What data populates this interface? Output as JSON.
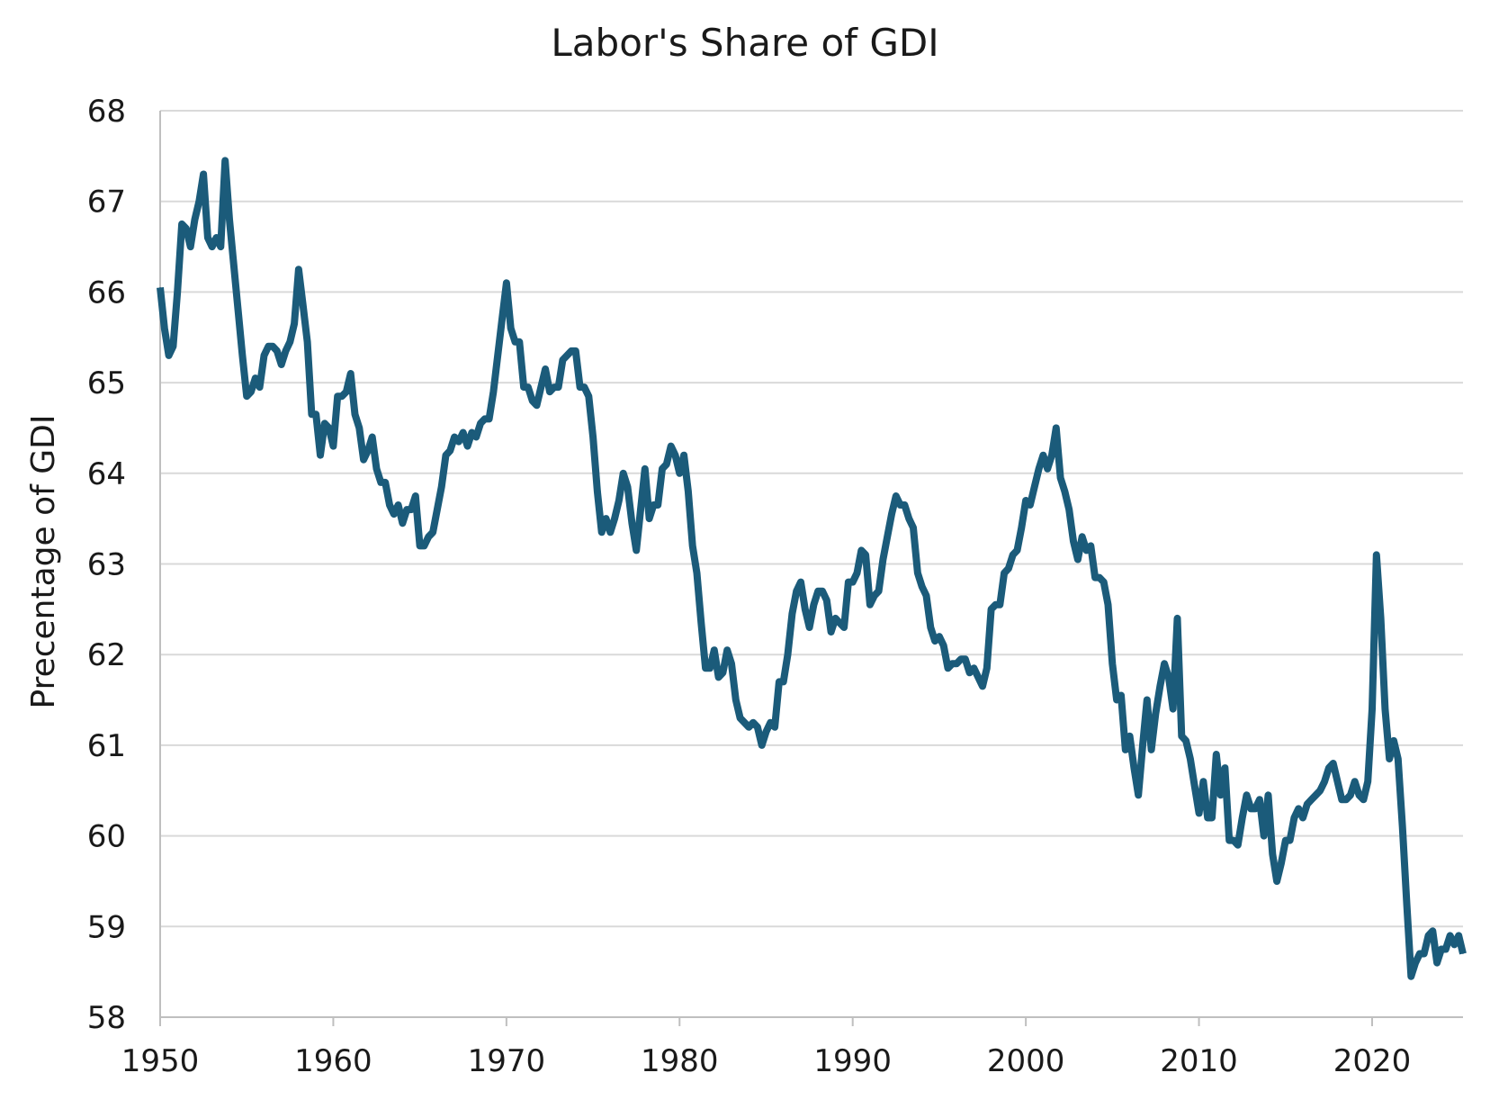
{
  "chart_data": {
    "type": "line",
    "title": "Labor's Share of GDI",
    "xlabel": "",
    "ylabel": "Precentage of GDI",
    "xlim": [
      1950,
      2025.25
    ],
    "ylim": [
      58,
      68
    ],
    "x_ticks": [
      "1950",
      "1960",
      "1970",
      "1980",
      "1990",
      "2000",
      "2010",
      "2020"
    ],
    "y_ticks": [
      "58",
      "59",
      "60",
      "61",
      "62",
      "63",
      "64",
      "65",
      "66",
      "67",
      "68"
    ],
    "grid": true,
    "colors": {
      "line": "#1b5b7a",
      "grid": "#d9d9d9",
      "axis": "#bfbfbf",
      "text": "#1a1a1a"
    },
    "series": [
      {
        "name": "Labor's Share of GDI",
        "points": [
          [
            1950.0,
            66.05
          ],
          [
            1950.25,
            65.6
          ],
          [
            1950.5,
            65.3
          ],
          [
            1950.75,
            65.4
          ],
          [
            1951.0,
            66.0
          ],
          [
            1951.25,
            66.75
          ],
          [
            1951.5,
            66.7
          ],
          [
            1951.75,
            66.5
          ],
          [
            1952.0,
            66.8
          ],
          [
            1952.25,
            67.0
          ],
          [
            1952.5,
            67.3
          ],
          [
            1952.75,
            66.6
          ],
          [
            1953.0,
            66.5
          ],
          [
            1953.25,
            66.6
          ],
          [
            1953.5,
            66.5
          ],
          [
            1953.75,
            67.45
          ],
          [
            1954.0,
            66.8
          ],
          [
            1954.25,
            66.3
          ],
          [
            1954.5,
            65.8
          ],
          [
            1954.75,
            65.3
          ],
          [
            1955.0,
            64.85
          ],
          [
            1955.25,
            64.9
          ],
          [
            1955.5,
            65.05
          ],
          [
            1955.75,
            64.95
          ],
          [
            1956.0,
            65.3
          ],
          [
            1956.25,
            65.4
          ],
          [
            1956.5,
            65.4
          ],
          [
            1956.75,
            65.35
          ],
          [
            1957.0,
            65.2
          ],
          [
            1957.25,
            65.35
          ],
          [
            1957.5,
            65.45
          ],
          [
            1957.75,
            65.65
          ],
          [
            1958.0,
            66.25
          ],
          [
            1958.25,
            65.85
          ],
          [
            1958.5,
            65.45
          ],
          [
            1958.75,
            64.65
          ],
          [
            1959.0,
            64.65
          ],
          [
            1959.25,
            64.2
          ],
          [
            1959.5,
            64.55
          ],
          [
            1959.75,
            64.5
          ],
          [
            1960.0,
            64.3
          ],
          [
            1960.25,
            64.85
          ],
          [
            1960.5,
            64.85
          ],
          [
            1960.75,
            64.9
          ],
          [
            1961.0,
            65.1
          ],
          [
            1961.25,
            64.65
          ],
          [
            1961.5,
            64.5
          ],
          [
            1961.75,
            64.15
          ],
          [
            1962.0,
            64.25
          ],
          [
            1962.25,
            64.4
          ],
          [
            1962.5,
            64.05
          ],
          [
            1962.75,
            63.9
          ],
          [
            1963.0,
            63.9
          ],
          [
            1963.25,
            63.65
          ],
          [
            1963.5,
            63.55
          ],
          [
            1963.75,
            63.65
          ],
          [
            1964.0,
            63.45
          ],
          [
            1964.25,
            63.6
          ],
          [
            1964.5,
            63.6
          ],
          [
            1964.75,
            63.75
          ],
          [
            1965.0,
            63.2
          ],
          [
            1965.25,
            63.2
          ],
          [
            1965.5,
            63.3
          ],
          [
            1965.75,
            63.35
          ],
          [
            1966.0,
            63.6
          ],
          [
            1966.25,
            63.85
          ],
          [
            1966.5,
            64.2
          ],
          [
            1966.75,
            64.25
          ],
          [
            1967.0,
            64.4
          ],
          [
            1967.25,
            64.35
          ],
          [
            1967.5,
            64.45
          ],
          [
            1967.75,
            64.3
          ],
          [
            1968.0,
            64.45
          ],
          [
            1968.25,
            64.4
          ],
          [
            1968.5,
            64.55
          ],
          [
            1968.75,
            64.6
          ],
          [
            1969.0,
            64.6
          ],
          [
            1969.25,
            64.9
          ],
          [
            1969.5,
            65.3
          ],
          [
            1969.75,
            65.7
          ],
          [
            1970.0,
            66.1
          ],
          [
            1970.25,
            65.6
          ],
          [
            1970.5,
            65.45
          ],
          [
            1970.75,
            65.45
          ],
          [
            1971.0,
            64.95
          ],
          [
            1971.25,
            64.95
          ],
          [
            1971.5,
            64.8
          ],
          [
            1971.75,
            64.75
          ],
          [
            1972.0,
            64.95
          ],
          [
            1972.25,
            65.15
          ],
          [
            1972.5,
            64.9
          ],
          [
            1972.75,
            64.95
          ],
          [
            1973.0,
            64.95
          ],
          [
            1973.25,
            65.25
          ],
          [
            1973.5,
            65.3
          ],
          [
            1973.75,
            65.35
          ],
          [
            1974.0,
            65.35
          ],
          [
            1974.25,
            64.95
          ],
          [
            1974.5,
            64.95
          ],
          [
            1974.75,
            64.85
          ],
          [
            1975.0,
            64.4
          ],
          [
            1975.25,
            63.8
          ],
          [
            1975.5,
            63.35
          ],
          [
            1975.75,
            63.5
          ],
          [
            1976.0,
            63.35
          ],
          [
            1976.25,
            63.5
          ],
          [
            1976.5,
            63.7
          ],
          [
            1976.75,
            64.0
          ],
          [
            1977.0,
            63.85
          ],
          [
            1977.25,
            63.45
          ],
          [
            1977.5,
            63.15
          ],
          [
            1977.75,
            63.6
          ],
          [
            1978.0,
            64.05
          ],
          [
            1978.25,
            63.5
          ],
          [
            1978.5,
            63.65
          ],
          [
            1978.75,
            63.65
          ],
          [
            1979.0,
            64.05
          ],
          [
            1979.25,
            64.1
          ],
          [
            1979.5,
            64.3
          ],
          [
            1979.75,
            64.2
          ],
          [
            1980.0,
            64.0
          ],
          [
            1980.25,
            64.2
          ],
          [
            1980.5,
            63.8
          ],
          [
            1980.75,
            63.2
          ],
          [
            1981.0,
            62.9
          ],
          [
            1981.25,
            62.35
          ],
          [
            1981.5,
            61.85
          ],
          [
            1981.75,
            61.85
          ],
          [
            1982.0,
            62.05
          ],
          [
            1982.25,
            61.75
          ],
          [
            1982.5,
            61.8
          ],
          [
            1982.75,
            62.05
          ],
          [
            1983.0,
            61.9
          ],
          [
            1983.25,
            61.5
          ],
          [
            1983.5,
            61.3
          ],
          [
            1983.75,
            61.25
          ],
          [
            1984.0,
            61.2
          ],
          [
            1984.25,
            61.25
          ],
          [
            1984.5,
            61.2
          ],
          [
            1984.75,
            61.0
          ],
          [
            1985.0,
            61.15
          ],
          [
            1985.25,
            61.25
          ],
          [
            1985.5,
            61.2
          ],
          [
            1985.75,
            61.7
          ],
          [
            1986.0,
            61.7
          ],
          [
            1986.25,
            62.0
          ],
          [
            1986.5,
            62.45
          ],
          [
            1986.75,
            62.7
          ],
          [
            1987.0,
            62.8
          ],
          [
            1987.25,
            62.5
          ],
          [
            1987.5,
            62.3
          ],
          [
            1987.75,
            62.55
          ],
          [
            1988.0,
            62.7
          ],
          [
            1988.25,
            62.7
          ],
          [
            1988.5,
            62.6
          ],
          [
            1988.75,
            62.25
          ],
          [
            1989.0,
            62.4
          ],
          [
            1989.25,
            62.35
          ],
          [
            1989.5,
            62.3
          ],
          [
            1989.75,
            62.8
          ],
          [
            1990.0,
            62.8
          ],
          [
            1990.25,
            62.9
          ],
          [
            1990.5,
            63.15
          ],
          [
            1990.75,
            63.1
          ],
          [
            1991.0,
            62.55
          ],
          [
            1991.25,
            62.65
          ],
          [
            1991.5,
            62.7
          ],
          [
            1991.75,
            63.05
          ],
          [
            1992.0,
            63.3
          ],
          [
            1992.25,
            63.55
          ],
          [
            1992.5,
            63.75
          ],
          [
            1992.75,
            63.65
          ],
          [
            1993.0,
            63.65
          ],
          [
            1993.25,
            63.5
          ],
          [
            1993.5,
            63.4
          ],
          [
            1993.75,
            62.9
          ],
          [
            1994.0,
            62.75
          ],
          [
            1994.25,
            62.65
          ],
          [
            1994.5,
            62.3
          ],
          [
            1994.75,
            62.15
          ],
          [
            1995.0,
            62.2
          ],
          [
            1995.25,
            62.1
          ],
          [
            1995.5,
            61.85
          ],
          [
            1995.75,
            61.9
          ],
          [
            1996.0,
            61.9
          ],
          [
            1996.25,
            61.95
          ],
          [
            1996.5,
            61.95
          ],
          [
            1996.75,
            61.8
          ],
          [
            1997.0,
            61.85
          ],
          [
            1997.25,
            61.75
          ],
          [
            1997.5,
            61.65
          ],
          [
            1997.75,
            61.85
          ],
          [
            1998.0,
            62.5
          ],
          [
            1998.25,
            62.55
          ],
          [
            1998.5,
            62.55
          ],
          [
            1998.75,
            62.9
          ],
          [
            1999.0,
            62.95
          ],
          [
            1999.25,
            63.1
          ],
          [
            1999.5,
            63.15
          ],
          [
            1999.75,
            63.4
          ],
          [
            2000.0,
            63.7
          ],
          [
            2000.25,
            63.65
          ],
          [
            2000.5,
            63.85
          ],
          [
            2000.75,
            64.05
          ],
          [
            2001.0,
            64.2
          ],
          [
            2001.25,
            64.05
          ],
          [
            2001.5,
            64.2
          ],
          [
            2001.75,
            64.5
          ],
          [
            2002.0,
            63.95
          ],
          [
            2002.25,
            63.8
          ],
          [
            2002.5,
            63.6
          ],
          [
            2002.75,
            63.25
          ],
          [
            2003.0,
            63.05
          ],
          [
            2003.25,
            63.3
          ],
          [
            2003.5,
            63.15
          ],
          [
            2003.75,
            63.2
          ],
          [
            2004.0,
            62.85
          ],
          [
            2004.25,
            62.85
          ],
          [
            2004.5,
            62.8
          ],
          [
            2004.75,
            62.55
          ],
          [
            2005.0,
            61.9
          ],
          [
            2005.25,
            61.5
          ],
          [
            2005.5,
            61.55
          ],
          [
            2005.75,
            60.95
          ],
          [
            2006.0,
            61.1
          ],
          [
            2006.25,
            60.75
          ],
          [
            2006.5,
            60.45
          ],
          [
            2006.75,
            61.0
          ],
          [
            2007.0,
            61.5
          ],
          [
            2007.25,
            60.95
          ],
          [
            2007.5,
            61.35
          ],
          [
            2007.75,
            61.65
          ],
          [
            2008.0,
            61.9
          ],
          [
            2008.25,
            61.75
          ],
          [
            2008.5,
            61.4
          ],
          [
            2008.75,
            62.4
          ],
          [
            2009.0,
            61.1
          ],
          [
            2009.25,
            61.05
          ],
          [
            2009.5,
            60.85
          ],
          [
            2009.75,
            60.55
          ],
          [
            2010.0,
            60.25
          ],
          [
            2010.25,
            60.6
          ],
          [
            2010.5,
            60.2
          ],
          [
            2010.75,
            60.2
          ],
          [
            2011.0,
            60.9
          ],
          [
            2011.25,
            60.45
          ],
          [
            2011.5,
            60.75
          ],
          [
            2011.75,
            59.95
          ],
          [
            2012.0,
            59.95
          ],
          [
            2012.25,
            59.9
          ],
          [
            2012.5,
            60.2
          ],
          [
            2012.75,
            60.45
          ],
          [
            2013.0,
            60.3
          ],
          [
            2013.25,
            60.3
          ],
          [
            2013.5,
            60.4
          ],
          [
            2013.75,
            60.0
          ],
          [
            2014.0,
            60.45
          ],
          [
            2014.25,
            59.8
          ],
          [
            2014.5,
            59.5
          ],
          [
            2014.75,
            59.7
          ],
          [
            2015.0,
            59.95
          ],
          [
            2015.25,
            59.95
          ],
          [
            2015.5,
            60.2
          ],
          [
            2015.75,
            60.3
          ],
          [
            2016.0,
            60.2
          ],
          [
            2016.25,
            60.35
          ],
          [
            2016.5,
            60.4
          ],
          [
            2016.75,
            60.45
          ],
          [
            2017.0,
            60.5
          ],
          [
            2017.25,
            60.6
          ],
          [
            2017.5,
            60.75
          ],
          [
            2017.75,
            60.8
          ],
          [
            2018.0,
            60.6
          ],
          [
            2018.25,
            60.4
          ],
          [
            2018.5,
            60.4
          ],
          [
            2018.75,
            60.45
          ],
          [
            2019.0,
            60.6
          ],
          [
            2019.25,
            60.45
          ],
          [
            2019.5,
            60.4
          ],
          [
            2019.75,
            60.6
          ],
          [
            2020.0,
            61.4
          ],
          [
            2020.25,
            63.1
          ],
          [
            2020.5,
            62.4
          ],
          [
            2020.75,
            61.4
          ],
          [
            2021.0,
            60.85
          ],
          [
            2021.25,
            61.05
          ],
          [
            2021.5,
            60.85
          ],
          [
            2021.75,
            60.1
          ],
          [
            2022.0,
            59.25
          ],
          [
            2022.25,
            58.45
          ],
          [
            2022.5,
            58.6
          ],
          [
            2022.75,
            58.7
          ],
          [
            2023.0,
            58.7
          ],
          [
            2023.25,
            58.9
          ],
          [
            2023.5,
            58.95
          ],
          [
            2023.75,
            58.6
          ],
          [
            2024.0,
            58.75
          ],
          [
            2024.25,
            58.75
          ],
          [
            2024.5,
            58.9
          ],
          [
            2024.75,
            58.8
          ],
          [
            2025.0,
            58.9
          ],
          [
            2025.25,
            58.7
          ]
        ]
      }
    ]
  }
}
